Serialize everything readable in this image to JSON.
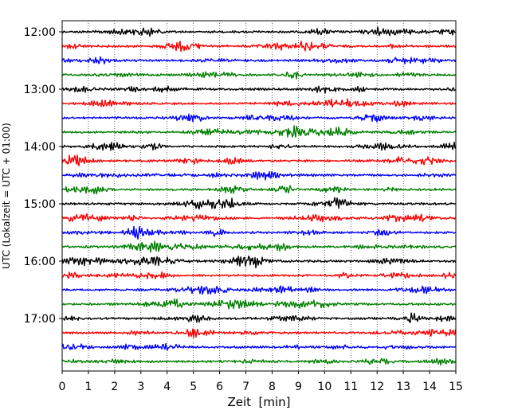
{
  "chart_data": {
    "type": "line",
    "title": "",
    "xlabel": "Zeit  [min]",
    "ylabel": "UTC (Lokalzeit = UTC + 01:00)",
    "xlim": [
      0,
      15
    ],
    "x_ticks": [
      "0",
      "1",
      "2",
      "3",
      "4",
      "5",
      "6",
      "7",
      "8",
      "9",
      "10",
      "11",
      "12",
      "13",
      "14",
      "15"
    ],
    "y_tick_labels": [
      "12:00",
      "13:00",
      "14:00",
      "15:00",
      "16:00",
      "17:00"
    ],
    "grid": "vertical dotted lines at each minute",
    "trace_interval_minutes": 15,
    "traces_start": "12:00",
    "trace_count": 24,
    "trace_colors": [
      "#000000",
      "#ff0000",
      "#0000ff",
      "#008000"
    ]
  }
}
